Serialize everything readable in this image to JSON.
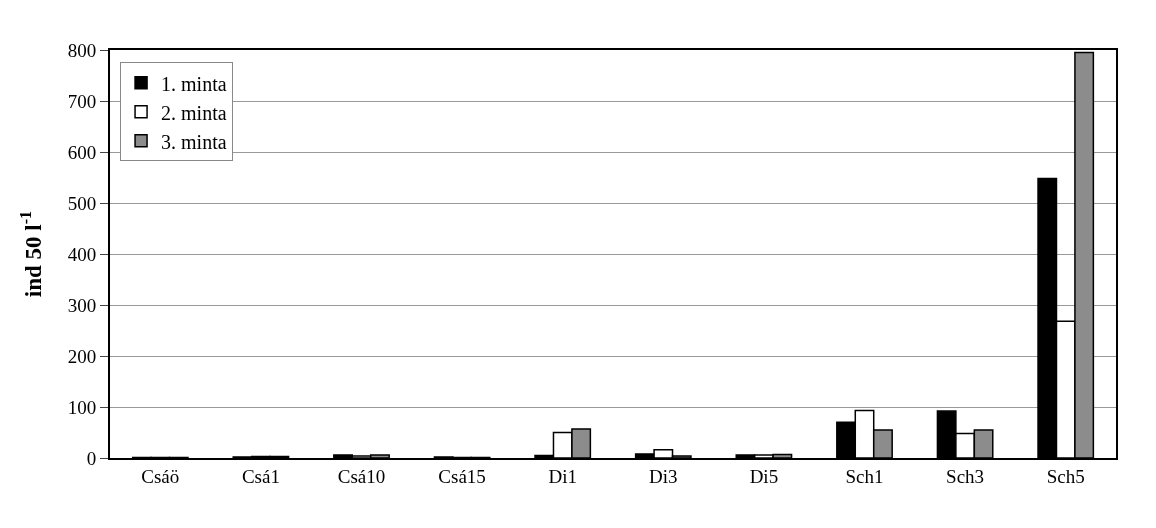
{
  "chart_data": {
    "type": "bar",
    "ylabel": "ind 50 l$^{-1}$",
    "categories": [
      "Csáö",
      "Csá1",
      "Csá10",
      "Csá15",
      "Di1",
      "Di3",
      "Di5",
      "Sch1",
      "Sch3",
      "Sch5"
    ],
    "series": [
      {
        "name": "1. minta",
        "color": "#000000",
        "values": [
          1,
          2,
          6,
          2,
          5,
          8,
          6,
          70,
          92,
          548
        ]
      },
      {
        "name": "2. minta",
        "color": "#ffffff",
        "values": [
          1,
          3,
          4,
          1,
          50,
          16,
          6,
          93,
          48,
          268
        ]
      },
      {
        "name": "3. minta",
        "color": "#8c8c8c",
        "values": [
          1,
          3,
          6,
          1,
          57,
          4,
          7,
          55,
          55,
          795
        ]
      }
    ],
    "ylim": [
      0,
      800
    ],
    "yticks": [
      0,
      100,
      200,
      300,
      400,
      500,
      600,
      700,
      800
    ],
    "grid": "y",
    "legend": "top left"
  }
}
